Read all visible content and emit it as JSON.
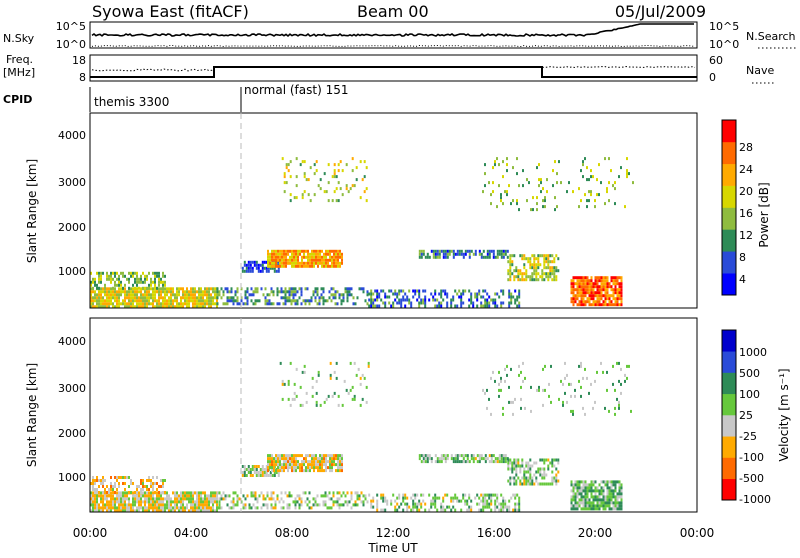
{
  "header": {
    "title": "Syowa East (fitACF)",
    "beam": "Beam 00",
    "date": "05/Jul/2009"
  },
  "params": {
    "nsky_label": "N.Sky",
    "nsky_ticks": [
      "10^5",
      "10^0"
    ],
    "nsearch_label": "N.Search",
    "nsearch_ticks": [
      "10^5",
      "10^0"
    ],
    "freq_label": "Freq.",
    "freq_unit": "[MHz]",
    "freq_ticks": [
      "18",
      "8"
    ],
    "nave_label": "Nave",
    "nave_ticks": [
      "60",
      "0"
    ],
    "cpid_label": "CPID",
    "cpid_modes": [
      "themis 3300",
      "normal (fast) 151"
    ]
  },
  "time_axis": {
    "xlabel": "Time UT",
    "tick_labels": [
      "00:00",
      "04:00",
      "08:00",
      "12:00",
      "16:00",
      "20:00",
      "00:00"
    ]
  },
  "panels": {
    "power": {
      "ylabel": "Slant Range [km]",
      "colorbar_label": "Power [dB]",
      "colorbar_ticks": [
        "28",
        "24",
        "20",
        "16",
        "12",
        "8",
        "4"
      ],
      "y_ticks": [
        "4000",
        "3000",
        "2000",
        "1000"
      ]
    },
    "velocity": {
      "ylabel": "Slant Range [km]",
      "colorbar_label": "Velocity [m s⁻¹]",
      "colorbar_ticks": [
        "1000",
        "500",
        "100",
        "25",
        "-25",
        "-100",
        "-500",
        "-1000"
      ],
      "y_ticks": [
        "4000",
        "3000",
        "2000",
        "1000"
      ]
    }
  },
  "chart_data": [
    {
      "type": "heatmap",
      "name": "power",
      "x_unit": "hours UT",
      "y_unit": "km",
      "xlim": [
        0,
        24
      ],
      "ylim": [
        180,
        4600
      ],
      "zlim": [
        0,
        32
      ],
      "zlabel": "Power [dB]",
      "colors": [
        "#0000ff",
        "#2a4bd8",
        "#2e8b57",
        "#8fbc3f",
        "#d7d700",
        "#ffaa00",
        "#ff6a00",
        "#ff0000"
      ],
      "regions": [
        {
          "x": [
            0.0,
            5.0
          ],
          "y": [
            200,
            650
          ],
          "z": 18,
          "density": 0.85
        },
        {
          "x": [
            0.0,
            3.0
          ],
          "y": [
            600,
            1000
          ],
          "z": 14,
          "density": 0.55
        },
        {
          "x": [
            5.0,
            11.0
          ],
          "y": [
            250,
            650
          ],
          "z": 10,
          "density": 0.45
        },
        {
          "x": [
            6.0,
            7.5
          ],
          "y": [
            1000,
            1250
          ],
          "z": 6,
          "density": 0.8
        },
        {
          "x": [
            7.0,
            10.0
          ],
          "y": [
            1150,
            1500
          ],
          "z": 22,
          "density": 0.9
        },
        {
          "x": [
            13.0,
            16.5
          ],
          "y": [
            1300,
            1500
          ],
          "z": 8,
          "density": 0.75
        },
        {
          "x": [
            16.5,
            18.5
          ],
          "y": [
            800,
            1400
          ],
          "z": 16,
          "density": 0.6
        },
        {
          "x": [
            11.0,
            17.0
          ],
          "y": [
            250,
            600
          ],
          "z": 8,
          "density": 0.45
        },
        {
          "x": [
            19.0,
            21.0
          ],
          "y": [
            250,
            900
          ],
          "z": 26,
          "density": 0.85
        },
        {
          "x": [
            7.5,
            11.0
          ],
          "y": [
            2600,
            3600
          ],
          "z": 16,
          "density": 0.1
        },
        {
          "x": [
            15.5,
            21.5
          ],
          "y": [
            2400,
            3600
          ],
          "z": 14,
          "density": 0.08
        }
      ]
    },
    {
      "type": "heatmap",
      "name": "velocity",
      "x_unit": "hours UT",
      "y_unit": "km",
      "xlim": [
        0,
        24
      ],
      "ylim": [
        180,
        4600
      ],
      "zlim": [
        -1000,
        1000
      ],
      "zlabel": "Velocity [m s⁻¹]",
      "colors": [
        "#ff0000",
        "#ff6a00",
        "#ffaa00",
        "#c8c8c8",
        "#66c83c",
        "#2e8b57",
        "#2a4bd8",
        "#0000cc"
      ],
      "regions": [
        {
          "x": [
            0.0,
            5.0
          ],
          "y": [
            200,
            650
          ],
          "z": -150,
          "density": 0.85
        },
        {
          "x": [
            0.0,
            3.0
          ],
          "y": [
            600,
            1000
          ],
          "z": -300,
          "density": 0.5
        },
        {
          "x": [
            5.0,
            11.0
          ],
          "y": [
            250,
            650
          ],
          "z": 0,
          "density": 0.45
        },
        {
          "x": [
            6.0,
            7.5
          ],
          "y": [
            1000,
            1250
          ],
          "z": 0,
          "density": 0.8
        },
        {
          "x": [
            7.0,
            10.0
          ],
          "y": [
            1150,
            1500
          ],
          "z": -200,
          "density": 0.9
        },
        {
          "x": [
            13.0,
            16.5
          ],
          "y": [
            1300,
            1500
          ],
          "z": 80,
          "density": 0.75
        },
        {
          "x": [
            16.5,
            18.5
          ],
          "y": [
            800,
            1400
          ],
          "z": 60,
          "density": 0.6
        },
        {
          "x": [
            11.0,
            17.0
          ],
          "y": [
            250,
            600
          ],
          "z": 30,
          "density": 0.45
        },
        {
          "x": [
            19.0,
            21.0
          ],
          "y": [
            250,
            900
          ],
          "z": 150,
          "density": 0.85
        },
        {
          "x": [
            7.5,
            11.0
          ],
          "y": [
            2600,
            3600
          ],
          "z": 50,
          "density": 0.1
        },
        {
          "x": [
            15.5,
            21.5
          ],
          "y": [
            2400,
            3600
          ],
          "z": 100,
          "density": 0.08
        }
      ]
    }
  ]
}
